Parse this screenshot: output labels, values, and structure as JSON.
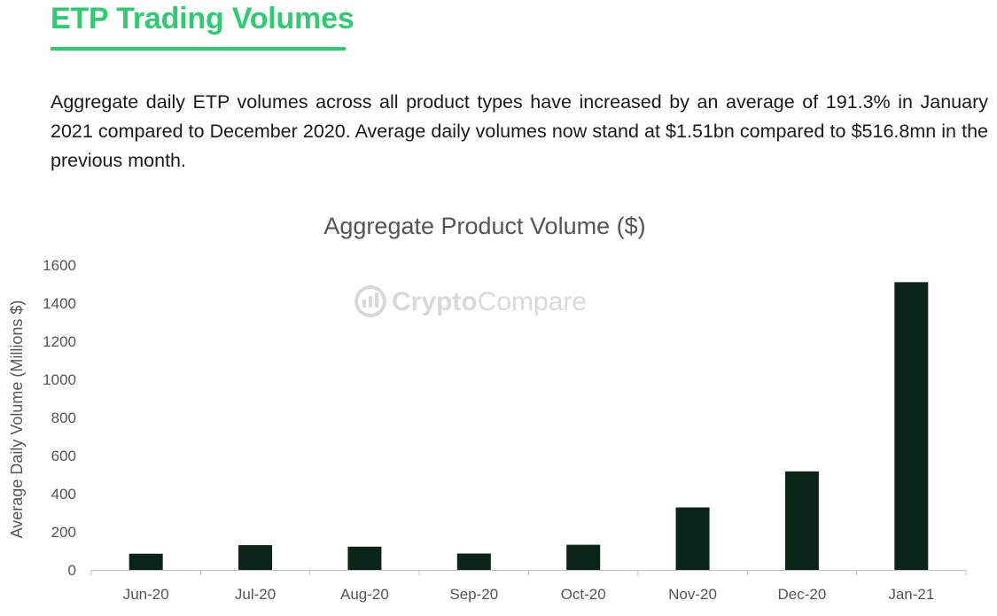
{
  "header": {
    "title": "ETP Trading Volumes",
    "summary": "Aggregate daily ETP volumes across all product types have increased by an average of 191.3% in January 2021 compared to December 2020. Average daily volumes now stand at $1.51bn compared to $516.8mn in the previous month."
  },
  "watermark": {
    "text_bold": "Crypto",
    "text_regular": "Compare",
    "icon": "cryptocompare-logo-icon"
  },
  "colors": {
    "accent": "#2ecc71",
    "bar": "#0b2418",
    "text": "#555555"
  },
  "chart_data": {
    "type": "bar",
    "title": "Aggregate Product Volume ($)",
    "xlabel": "",
    "ylabel": "Average Daily Volume (Millions $)",
    "categories": [
      "Jun-20",
      "Jul-20",
      "Aug-20",
      "Sep-20",
      "Oct-20",
      "Nov-20",
      "Dec-20",
      "Jan-21"
    ],
    "series": [
      {
        "values": [
          85,
          130,
          122,
          86,
          132,
          328,
          517,
          1510
        ]
      }
    ],
    "ylim": [
      0,
      1600
    ],
    "yticks": [
      0,
      200,
      400,
      600,
      800,
      1000,
      1200,
      1400,
      1600
    ],
    "grid": false,
    "legend": "none"
  }
}
